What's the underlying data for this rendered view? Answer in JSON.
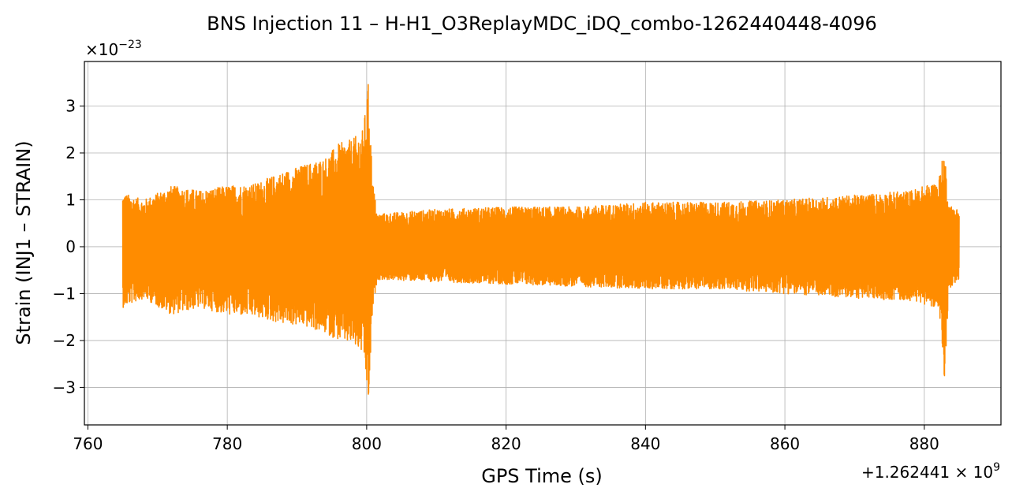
{
  "chart_data": {
    "type": "line",
    "title": "BNS Injection 11 – H-H1_O3ReplayMDC_iDQ_combo-1262440448-4096",
    "xlabel": "GPS Time (s)",
    "ylabel": "Strain (INJ1 – STRAIN)",
    "x_offset_label": "+1.262441 × 10",
    "x_offset_exponent": "9",
    "y_scale_label": "×10",
    "y_scale_exponent": "−23",
    "xlim": [
      759.5,
      891
    ],
    "ylim": [
      -3.8,
      3.95
    ],
    "xticks": [
      760,
      780,
      800,
      820,
      840,
      860,
      880
    ],
    "xtick_labels": [
      "760",
      "780",
      "800",
      "820",
      "840",
      "860",
      "880"
    ],
    "yticks": [
      -3,
      -2,
      -1,
      0,
      1,
      2,
      3
    ],
    "ytick_labels": [
      "−3",
      "−2",
      "−1",
      "0",
      "1",
      "2",
      "3"
    ],
    "grid": true,
    "series": [
      {
        "color": "#ff8c00",
        "envelope": [
          {
            "t": 765.0,
            "upper": 1.15,
            "lower": -1.3
          },
          {
            "t": 768.0,
            "upper": 1.0,
            "lower": -1.1
          },
          {
            "t": 772.0,
            "upper": 1.3,
            "lower": -1.45
          },
          {
            "t": 776.0,
            "upper": 1.2,
            "lower": -1.3
          },
          {
            "t": 780.0,
            "upper": 1.3,
            "lower": -1.45
          },
          {
            "t": 784.0,
            "upper": 1.35,
            "lower": -1.5
          },
          {
            "t": 788.0,
            "upper": 1.6,
            "lower": -1.65
          },
          {
            "t": 791.0,
            "upper": 1.75,
            "lower": -1.7
          },
          {
            "t": 794.0,
            "upper": 1.9,
            "lower": -1.85
          },
          {
            "t": 796.0,
            "upper": 2.2,
            "lower": -2.0
          },
          {
            "t": 798.0,
            "upper": 2.3,
            "lower": -2.1
          },
          {
            "t": 799.5,
            "upper": 2.5,
            "lower": -2.3
          },
          {
            "t": 800.3,
            "upper": 3.6,
            "lower": -3.4
          },
          {
            "t": 800.8,
            "upper": 1.5,
            "lower": -1.5
          },
          {
            "t": 801.5,
            "upper": 0.7,
            "lower": -0.7
          },
          {
            "t": 810.0,
            "upper": 0.8,
            "lower": -0.75
          },
          {
            "t": 820.0,
            "upper": 0.85,
            "lower": -0.8
          },
          {
            "t": 830.0,
            "upper": 0.85,
            "lower": -0.85
          },
          {
            "t": 840.0,
            "upper": 0.95,
            "lower": -0.9
          },
          {
            "t": 850.0,
            "upper": 0.95,
            "lower": -0.9
          },
          {
            "t": 860.0,
            "upper": 1.0,
            "lower": -1.0
          },
          {
            "t": 870.0,
            "upper": 1.1,
            "lower": -1.1
          },
          {
            "t": 878.0,
            "upper": 1.2,
            "lower": -1.15
          },
          {
            "t": 882.0,
            "upper": 1.4,
            "lower": -1.3
          },
          {
            "t": 882.9,
            "upper": 2.1,
            "lower": -3.0
          },
          {
            "t": 883.5,
            "upper": 0.9,
            "lower": -0.9
          },
          {
            "t": 885.0,
            "upper": 0.8,
            "lower": -0.7
          }
        ]
      }
    ]
  }
}
